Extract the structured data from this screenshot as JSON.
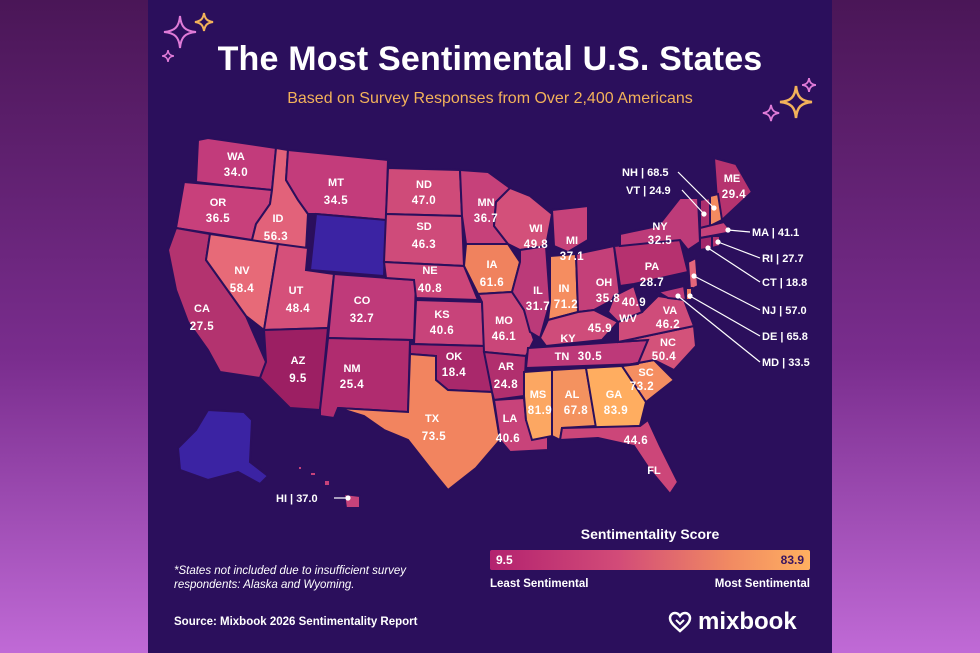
{
  "header": {
    "title": "The Most Sentimental U.S. States",
    "subtitle": "Based on Survey Responses from Over 2,400 Americans"
  },
  "colors": {
    "panel": "#2b0f5c",
    "no_data": "#3b23a3",
    "low": "#b3226f",
    "mid": "#d24b78",
    "high": "#ffb060",
    "title": "#ffffff",
    "subtitle": "#f3b25a"
  },
  "states": {
    "WA": {
      "abbr": "WA",
      "value": "34.0"
    },
    "OR": {
      "abbr": "OR",
      "value": "36.5"
    },
    "ID": {
      "abbr": "ID",
      "value": "56.3"
    },
    "MT": {
      "abbr": "MT",
      "value": "34.5"
    },
    "ND": {
      "abbr": "ND",
      "value": "47.0"
    },
    "SD": {
      "abbr": "SD",
      "value": "46.3"
    },
    "MN": {
      "abbr": "MN",
      "value": "36.7"
    },
    "WI": {
      "abbr": "WI",
      "value": "49.8"
    },
    "MI": {
      "abbr": "MI",
      "value": "37.1"
    },
    "NY": {
      "abbr": "NY",
      "value": "32.5"
    },
    "ME": {
      "abbr": "ME",
      "value": "29.4"
    },
    "CA": {
      "abbr": "CA",
      "value": "27.5"
    },
    "NV": {
      "abbr": "NV",
      "value": "58.4"
    },
    "UT": {
      "abbr": "UT",
      "value": "48.4"
    },
    "CO": {
      "abbr": "CO",
      "value": "32.7"
    },
    "NE": {
      "abbr": "NE",
      "value": "40.8"
    },
    "KS": {
      "abbr": "KS",
      "value": "40.6"
    },
    "IA": {
      "abbr": "IA",
      "value": "61.6"
    },
    "IL": {
      "abbr": "IL",
      "value": "31.7"
    },
    "IN": {
      "abbr": "IN",
      "value": "71.2"
    },
    "OH": {
      "abbr": "OH",
      "value": "35.8"
    },
    "PA": {
      "abbr": "PA",
      "value": "28.7"
    },
    "MO": {
      "abbr": "MO",
      "value": "46.1"
    },
    "KY": {
      "abbr": "KY",
      "value": "45.9"
    },
    "WV": {
      "abbr": "WV",
      "value": "40.9"
    },
    "VA": {
      "abbr": "VA",
      "value": "46.2"
    },
    "AZ": {
      "abbr": "AZ",
      "value": "9.5"
    },
    "NM": {
      "abbr": "NM",
      "value": "25.4"
    },
    "OK": {
      "abbr": "OK",
      "value": "18.4"
    },
    "AR": {
      "abbr": "AR",
      "value": "24.8"
    },
    "TN": {
      "abbr": "TN",
      "value": "30.5"
    },
    "NC": {
      "abbr": "NC",
      "value": "50.4"
    },
    "SC": {
      "abbr": "SC",
      "value": "73.2"
    },
    "TX": {
      "abbr": "TX",
      "value": "73.5"
    },
    "LA": {
      "abbr": "LA",
      "value": "40.6"
    },
    "MS": {
      "abbr": "MS",
      "value": "81.9"
    },
    "AL": {
      "abbr": "AL",
      "value": "67.8"
    },
    "GA": {
      "abbr": "GA",
      "value": "83.9"
    },
    "FL": {
      "abbr": "FL",
      "value": "44.6"
    }
  },
  "callouts": {
    "NH": "NH | 68.5",
    "VT": "VT | 24.9",
    "MA": "MA | 41.1",
    "RI": "RI | 27.7",
    "CT": "CT | 18.8",
    "NJ": "NJ | 57.0",
    "DE": "DE | 65.8",
    "MD": "MD | 33.5",
    "HI": "HI | 37.0"
  },
  "legend": {
    "title": "Sentimentality Score",
    "min": "9.5",
    "max": "83.9",
    "left_label": "Least Sentimental",
    "right_label": "Most Sentimental"
  },
  "footnote": "*States not included due to insufficient survey respondents: Alaska and Wyoming.",
  "source": "Source: Mixbook 2026 Sentimentality Report",
  "brand": "mixbook",
  "icons": [
    "sparkle-icon",
    "heart-logo-icon"
  ]
}
